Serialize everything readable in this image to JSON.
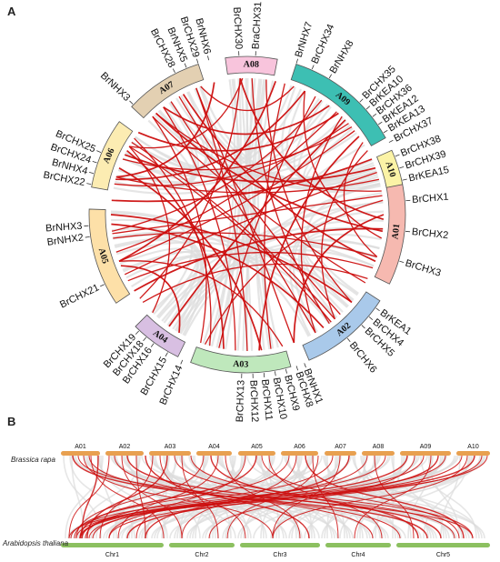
{
  "panels": {
    "a": "A",
    "b": "B"
  },
  "colors": {
    "link_red": "#cc0e0e",
    "link_grey": "#dcdcdc",
    "bar_orange": "#e8a050",
    "bar_green": "#8cc060"
  },
  "circos": {
    "segments": [
      {
        "name": "A01",
        "color": "#f6b9b0"
      },
      {
        "name": "A02",
        "color": "#a9c9ea"
      },
      {
        "name": "A03",
        "color": "#bfe8bc"
      },
      {
        "name": "A04",
        "color": "#d8bfe2"
      },
      {
        "name": "A05",
        "color": "#fde0a8"
      },
      {
        "name": "A06",
        "color": "#fcecb2"
      },
      {
        "name": "A07",
        "color": "#e3d0b2"
      },
      {
        "name": "A08",
        "color": "#f8c4dc"
      },
      {
        "name": "A09",
        "color": "#3dbfb3"
      },
      {
        "name": "A10",
        "color": "#fbf3a6"
      }
    ],
    "genes": [
      "BrCHX30",
      "BraCHX31",
      "BrNHX7",
      "BrCHX34",
      "BrNHX8",
      "BrCHX35",
      "BrKEA10",
      "BrCHX36",
      "BrKEA12",
      "BrKEA13",
      "BrCHX37",
      "BrCHX38",
      "BrCHX39",
      "BrKEA15",
      "BrCHX1",
      "BrCHX2",
      "BrCHX3",
      "BrKEA1",
      "BrCHX4",
      "BrCHX5",
      "BrCHX6",
      "BrNHX1",
      "BrCHX8",
      "BrCHX9",
      "BrCHX10",
      "BrCHX11",
      "BrCHX12",
      "BrCHX13",
      "BrCHX14",
      "BrCHX15",
      "BrCHX16",
      "BrCHX18",
      "BrCHX19",
      "BrCHX21",
      "BrNHX2",
      "BrNHX3",
      "BrCHX22",
      "BrNHX4",
      "BrCHX24",
      "BrCHX25",
      "BrNHX3",
      "BrCHX28",
      "BrNHX5",
      "BrCHX29",
      "BrNHX6"
    ]
  },
  "synteny": {
    "top_species": "Brassica rapa",
    "bottom_species": "Arabidopsis thaliana",
    "top_chromosomes": [
      "A01",
      "A02",
      "A03",
      "A04",
      "A05",
      "A06",
      "A07",
      "A08",
      "A09",
      "A10"
    ],
    "bottom_chromosomes": [
      "Chr1",
      "Chr2",
      "Chr3",
      "Chr4",
      "Chr5"
    ]
  }
}
